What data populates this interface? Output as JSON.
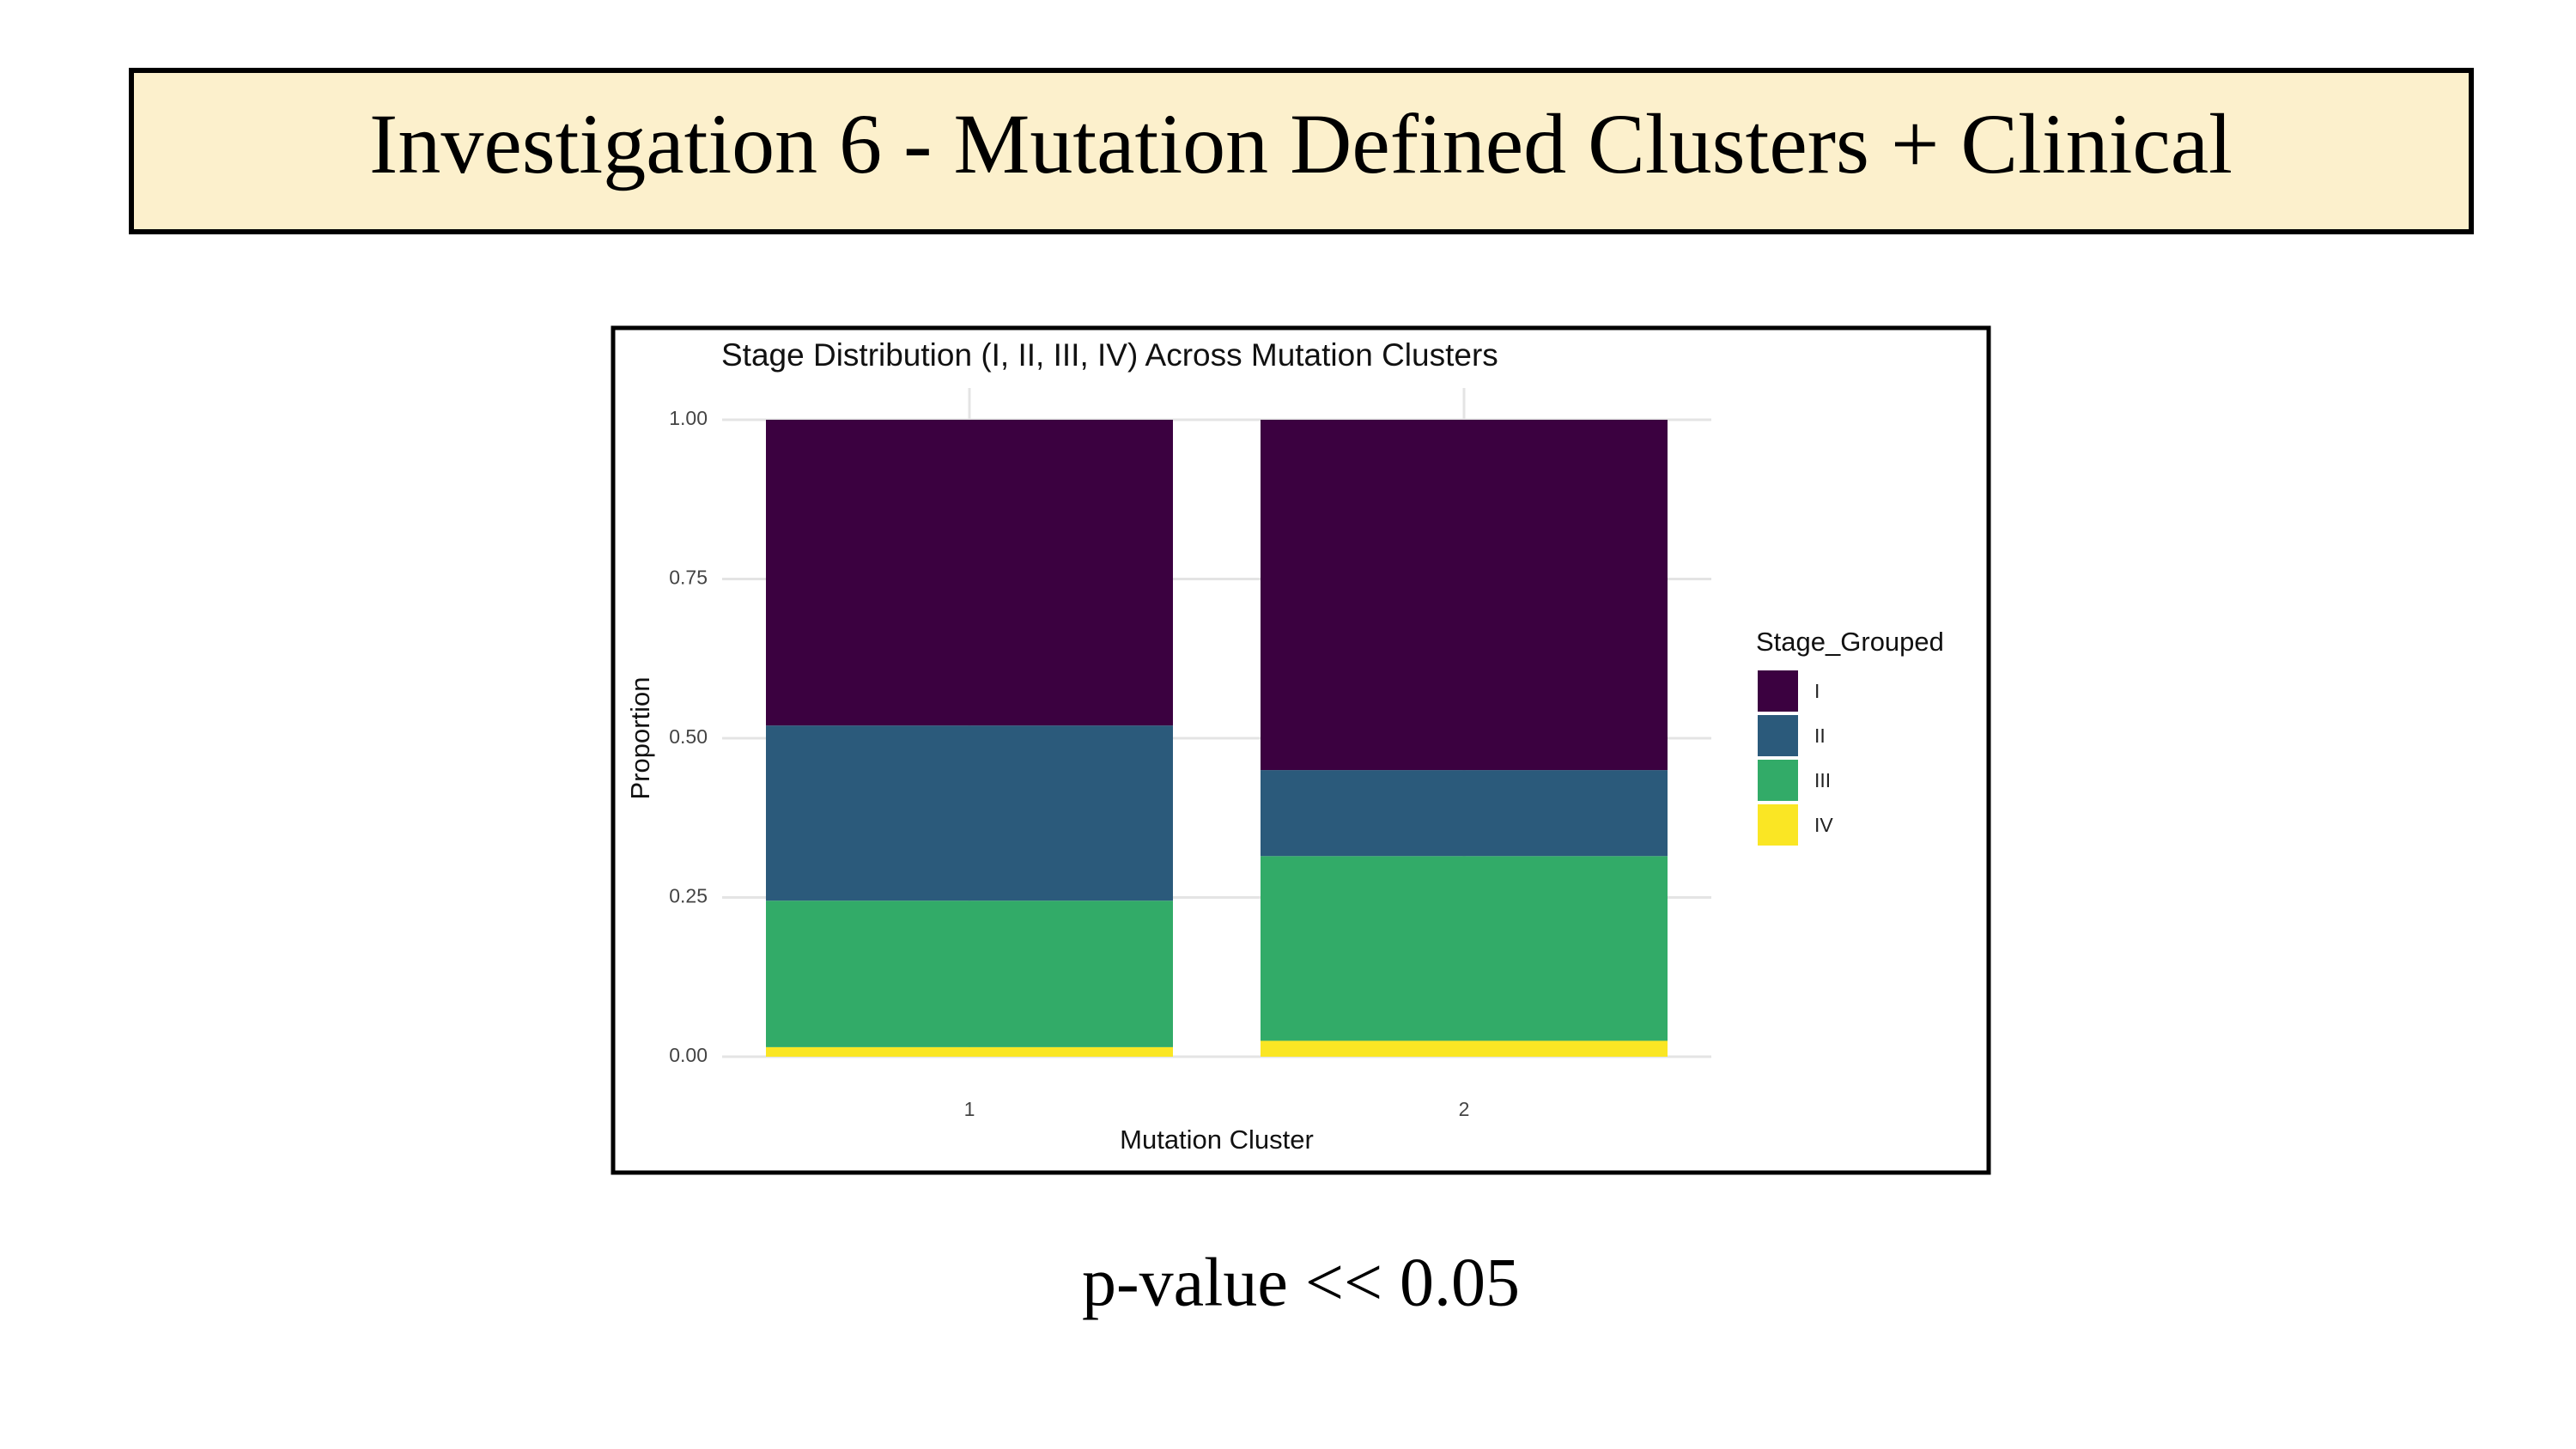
{
  "header": {
    "title": "Investigation 6 - Mutation Defined Clusters + Clinical"
  },
  "chart_data": {
    "type": "bar",
    "stacked": true,
    "title": "Stage Distribution (I, II, III, IV) Across Mutation Clusters",
    "xlabel": "Mutation Cluster",
    "ylabel": "Proportion",
    "legend_title": "Stage_Grouped",
    "categories": [
      "1",
      "2"
    ],
    "series": [
      {
        "name": "I",
        "color": "#3b0140",
        "values": [
          0.48,
          0.55
        ]
      },
      {
        "name": "II",
        "color": "#2b5a7b",
        "values": [
          0.275,
          0.135
        ]
      },
      {
        "name": "III",
        "color": "#32ab68",
        "values": [
          0.23,
          0.29
        ]
      },
      {
        "name": "IV",
        "color": "#fae624",
        "values": [
          0.015,
          0.025
        ]
      }
    ],
    "ylim": [
      0,
      1
    ],
    "yticks": [
      {
        "value": 0,
        "label": "0.00"
      },
      {
        "value": 0.25,
        "label": "0.25"
      },
      {
        "value": 0.5,
        "label": "0.50"
      },
      {
        "value": 0.75,
        "label": "0.75"
      },
      {
        "value": 1,
        "label": "1.00"
      }
    ],
    "grid": true,
    "legend": "right"
  },
  "footer": {
    "text": "p-value << 0.05"
  }
}
